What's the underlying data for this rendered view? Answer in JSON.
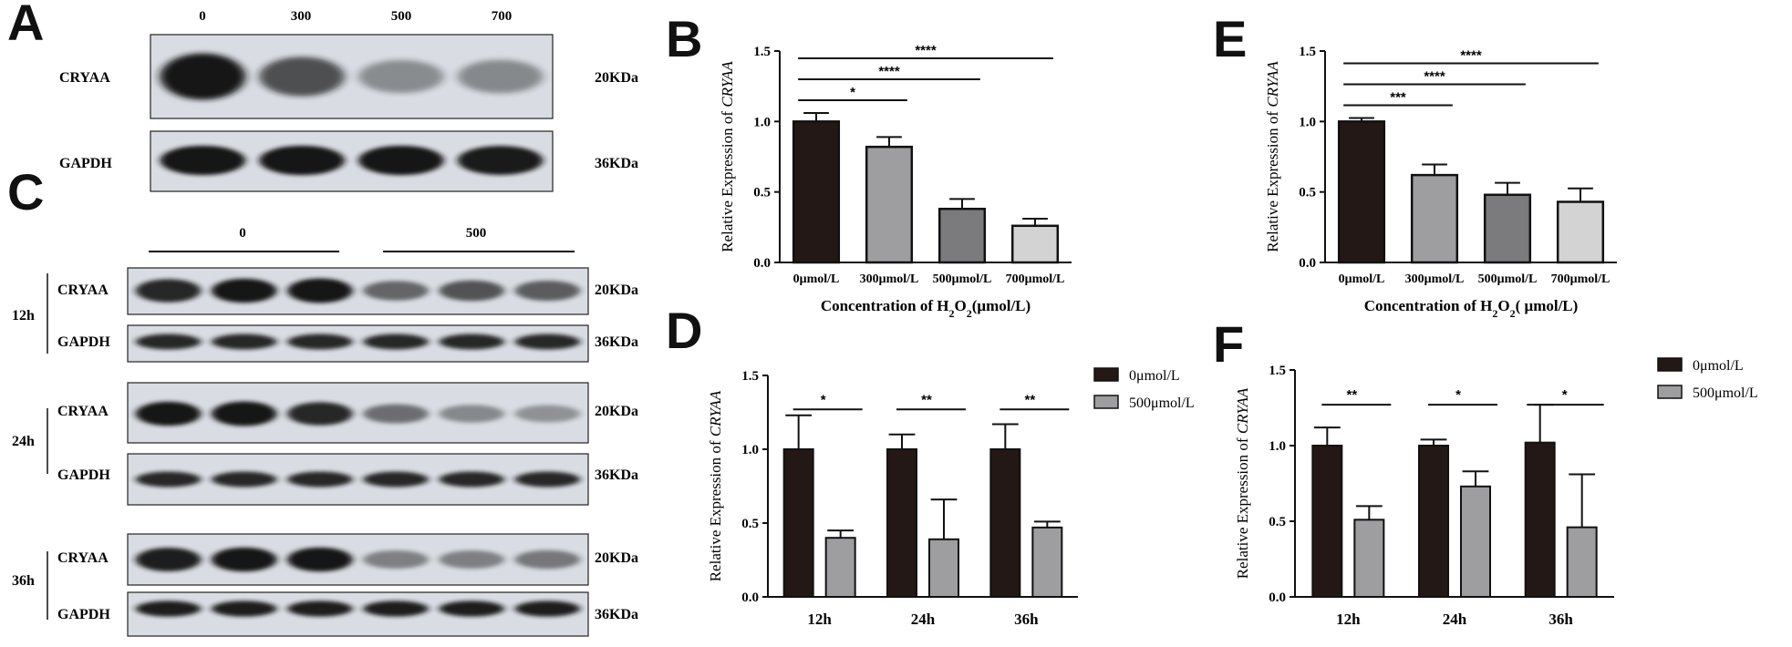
{
  "panels": {
    "A": "A",
    "B": "B",
    "C": "C",
    "D": "D",
    "E": "E",
    "F": "F"
  },
  "blot_a": {
    "concentrations": [
      "0",
      "300",
      "500",
      "700"
    ],
    "rows": [
      {
        "protein": "CRYAA",
        "size": "20KDa",
        "intensity": [
          1.0,
          0.62,
          0.28,
          0.3
        ]
      },
      {
        "protein": "GAPDH",
        "size": "36KDa",
        "intensity": [
          0.95,
          0.95,
          0.95,
          0.92
        ]
      }
    ]
  },
  "blot_c": {
    "groups": [
      "0",
      "500"
    ],
    "blocks": [
      {
        "time": "12h",
        "rows": [
          {
            "protein": "CRYAA",
            "size": "20KDa",
            "intensity": [
              0.85,
              0.95,
              1.0,
              0.5,
              0.6,
              0.55
            ]
          },
          {
            "protein": "GAPDH",
            "size": "36KDa",
            "intensity": [
              0.85,
              0.85,
              0.85,
              0.85,
              0.85,
              0.85
            ]
          }
        ]
      },
      {
        "time": "24h",
        "rows": [
          {
            "protein": "CRYAA",
            "size": "20KDa",
            "intensity": [
              0.95,
              1.0,
              0.85,
              0.45,
              0.3,
              0.25
            ]
          },
          {
            "protein": "GAPDH",
            "size": "36KDa",
            "intensity": [
              0.85,
              0.85,
              0.85,
              0.85,
              0.85,
              0.85
            ]
          }
        ]
      },
      {
        "time": "36h",
        "rows": [
          {
            "protein": "CRYAA",
            "size": "20KDa",
            "intensity": [
              0.9,
              0.95,
              0.95,
              0.35,
              0.35,
              0.4
            ]
          },
          {
            "protein": "GAPDH",
            "size": "36KDa",
            "intensity": [
              0.9,
              0.9,
              0.9,
              0.9,
              0.9,
              0.9
            ]
          }
        ]
      }
    ]
  },
  "chart_data": [
    {
      "panel": "B",
      "type": "bar",
      "categories": [
        "0μmol/L",
        "300μmol/L",
        "500μmol/L",
        "700μmol/L"
      ],
      "values": [
        1.0,
        0.82,
        0.38,
        0.26
      ],
      "errors": [
        0.06,
        0.07,
        0.07,
        0.05
      ],
      "colors": [
        "#231815",
        "#9e9d9f",
        "#7b7a7c",
        "#d3d3d3"
      ],
      "ylabel": "Relative Expression of CRYAA",
      "xlabel": "Concentration of H2O2(μmol/L)",
      "xlabel_parts": [
        "Concentration of H",
        "2",
        "O",
        "2",
        "(μmol/L)"
      ],
      "ylim": [
        0,
        1.5
      ],
      "yticks": [
        "0.0",
        "0.5",
        "1.0",
        "1.5"
      ],
      "significance": [
        {
          "from": 0,
          "to": 1,
          "label": "*"
        },
        {
          "from": 0,
          "to": 2,
          "label": "****"
        },
        {
          "from": 0,
          "to": 3,
          "label": "****"
        }
      ]
    },
    {
      "panel": "E",
      "type": "bar",
      "categories": [
        "0μmol/L",
        "300μmol/L",
        "500μmol/L",
        "700μmol/L"
      ],
      "values": [
        1.0,
        0.62,
        0.48,
        0.43
      ],
      "errors": [
        0.025,
        0.075,
        0.085,
        0.095
      ],
      "colors": [
        "#231815",
        "#9e9d9f",
        "#7b7a7c",
        "#d3d3d3"
      ],
      "ylabel": "Relative Expression of CRYAA",
      "xlabel": "Concentration of H2O2( μmol/L)",
      "xlabel_parts": [
        "Concentration of H",
        "2",
        "O",
        "2",
        "( μmol/L)"
      ],
      "ylim": [
        0,
        1.5
      ],
      "yticks": [
        "0.0",
        "0.5",
        "1.0",
        "1.5"
      ],
      "significance": [
        {
          "from": 0,
          "to": 1,
          "label": "***"
        },
        {
          "from": 0,
          "to": 2,
          "label": "****"
        },
        {
          "from": 0,
          "to": 3,
          "label": "****"
        }
      ]
    },
    {
      "panel": "D",
      "type": "bar",
      "categories": [
        "12h",
        "24h",
        "36h"
      ],
      "series": [
        {
          "name": "0μmol/L",
          "values": [
            1.0,
            1.0,
            1.0
          ],
          "errors": [
            0.23,
            0.1,
            0.17
          ],
          "color": "#231815"
        },
        {
          "name": "500μmol/L",
          "values": [
            0.4,
            0.39,
            0.47
          ],
          "errors": [
            0.05,
            0.27,
            0.04
          ],
          "color": "#9e9d9f"
        }
      ],
      "ylabel": "Relative Expression of CRYAA",
      "ylim": [
        0,
        1.5
      ],
      "yticks": [
        "0.0",
        "0.5",
        "1.0",
        "1.5"
      ],
      "significance": [
        "*",
        "**",
        "**"
      ],
      "legend": "top-right"
    },
    {
      "panel": "F",
      "type": "bar",
      "categories": [
        "12h",
        "24h",
        "36h"
      ],
      "series": [
        {
          "name": "0μmol/L",
          "values": [
            1.0,
            1.0,
            1.02
          ],
          "errors": [
            0.12,
            0.04,
            0.25
          ],
          "color": "#231815"
        },
        {
          "name": "500μmol/L",
          "values": [
            0.51,
            0.73,
            0.46
          ],
          "errors": [
            0.09,
            0.1,
            0.35
          ],
          "color": "#9e9d9f"
        }
      ],
      "ylabel": "Relative Expression of CRYAA",
      "ylim": [
        0,
        1.5
      ],
      "yticks": [
        "0.0",
        "0.5",
        "1.0",
        "1.5"
      ],
      "significance": [
        "**",
        "*",
        "*"
      ],
      "legend": "top-right"
    }
  ]
}
